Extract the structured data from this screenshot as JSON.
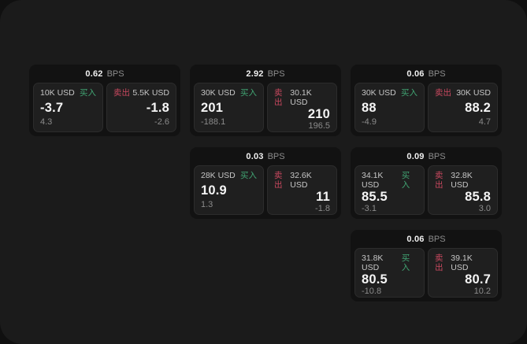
{
  "labels": {
    "bps_unit": "BPS",
    "buy": "买入",
    "sell": "卖出"
  },
  "colors": {
    "buy": "#41a473",
    "sell": "#c8485f",
    "page_bg": "#1b1b1b",
    "card_bg": "#121212",
    "panel_bg": "#1f1f1f"
  },
  "cards": [
    {
      "bps": "0.62",
      "buy": {
        "amount": "10K USD",
        "value": "-3.7",
        "sub": "4.3"
      },
      "sell": {
        "amount": "5.5K USD",
        "value": "-1.8",
        "sub": "-2.6"
      }
    },
    {
      "bps": "2.92",
      "buy": {
        "amount": "30K USD",
        "value": "201",
        "sub": "-188.1"
      },
      "sell": {
        "amount": "30.1K USD",
        "value": "210",
        "sub": "196.5"
      }
    },
    {
      "bps": "0.06",
      "buy": {
        "amount": "30K USD",
        "value": "88",
        "sub": "-4.9"
      },
      "sell": {
        "amount": "30K USD",
        "value": "88.2",
        "sub": "4.7"
      }
    },
    {
      "bps": "0.03",
      "buy": {
        "amount": "28K USD",
        "value": "10.9",
        "sub": "1.3"
      },
      "sell": {
        "amount": "32.6K USD",
        "value": "11",
        "sub": "-1.8"
      }
    },
    {
      "bps": "0.09",
      "buy": {
        "amount": "34.1K USD",
        "value": "85.5",
        "sub": "-3.1"
      },
      "sell": {
        "amount": "32.8K USD",
        "value": "85.8",
        "sub": "3.0"
      }
    },
    {
      "bps": "0.06",
      "buy": {
        "amount": "31.8K USD",
        "value": "80.5",
        "sub": "-10.8"
      },
      "sell": {
        "amount": "39.1K USD",
        "value": "80.7",
        "sub": "10.2"
      }
    }
  ]
}
